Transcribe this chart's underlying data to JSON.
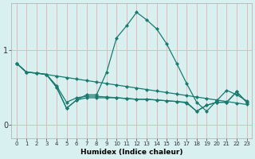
{
  "xlabel": "Humidex (Indice chaleur)",
  "background_color": "#d8f0f0",
  "grid_color": "#e8b8b8",
  "line_color": "#1a7a6e",
  "xlim": [
    -0.5,
    23.5
  ],
  "ylim": [
    -0.18,
    1.62
  ],
  "yticks": [
    0,
    1
  ],
  "xticks": [
    0,
    1,
    2,
    3,
    4,
    5,
    6,
    7,
    8,
    9,
    10,
    11,
    12,
    13,
    14,
    15,
    16,
    17,
    18,
    19,
    20,
    21,
    22,
    23
  ],
  "line1_x": [
    0,
    1,
    2,
    3,
    4,
    5,
    6,
    7,
    8,
    9,
    10,
    11,
    12,
    13,
    14,
    15,
    16,
    17,
    18,
    19,
    20,
    21,
    22,
    23
  ],
  "line1_y": [
    0.82,
    0.7,
    0.69,
    0.67,
    0.65,
    0.63,
    0.61,
    0.59,
    0.57,
    0.55,
    0.53,
    0.51,
    0.49,
    0.47,
    0.45,
    0.43,
    0.41,
    0.39,
    0.37,
    0.35,
    0.33,
    0.31,
    0.29,
    0.27
  ],
  "line2_x": [
    0,
    1,
    2,
    3,
    4,
    5,
    6,
    7,
    8,
    9,
    10,
    11,
    12,
    13,
    14,
    15,
    16,
    17,
    18,
    19,
    20,
    21,
    22,
    23
  ],
  "line2_y": [
    0.82,
    0.7,
    0.69,
    0.67,
    0.52,
    0.3,
    0.36,
    0.38,
    0.38,
    0.37,
    0.36,
    0.35,
    0.34,
    0.34,
    0.33,
    0.32,
    0.31,
    0.3,
    0.18,
    0.26,
    0.3,
    0.3,
    0.44,
    0.3
  ],
  "line3_x": [
    0,
    1,
    2,
    3,
    4,
    5,
    6,
    7,
    8,
    9,
    10,
    11,
    12,
    13,
    14,
    15,
    16,
    17,
    18,
    19,
    20,
    21,
    22,
    23
  ],
  "line3_y": [
    0.82,
    0.7,
    0.69,
    0.67,
    0.5,
    0.22,
    0.33,
    0.4,
    0.4,
    0.7,
    1.16,
    1.32,
    1.5,
    1.4,
    1.28,
    1.08,
    0.82,
    0.55,
    0.3,
    0.18,
    0.32,
    0.46,
    0.4,
    0.32
  ],
  "line4_x": [
    0,
    1,
    2,
    3,
    4,
    5,
    6,
    7,
    8,
    9,
    10,
    11,
    12,
    13,
    14,
    15,
    16,
    17,
    18,
    19,
    20,
    21,
    22,
    23
  ],
  "line4_y": [
    0.82,
    0.7,
    0.69,
    0.67,
    0.5,
    0.22,
    0.33,
    0.36,
    0.36,
    0.36,
    0.36,
    0.35,
    0.34,
    0.34,
    0.33,
    0.32,
    0.31,
    0.29,
    0.18,
    0.26,
    0.3,
    0.3,
    0.44,
    0.3
  ]
}
